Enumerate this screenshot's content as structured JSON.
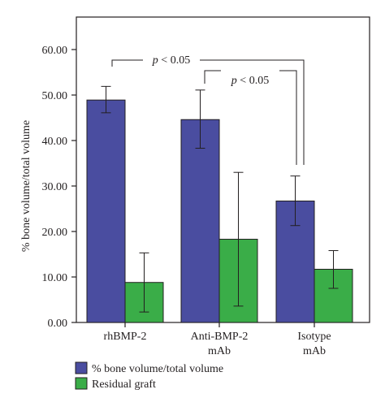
{
  "chart_data": {
    "type": "bar",
    "ylabel": "% bone volume/total volume",
    "ylim": [
      0,
      60
    ],
    "yticks": [
      "0.00",
      "10.00",
      "20.00",
      "30.00",
      "40.00",
      "50.00",
      "60.00"
    ],
    "categories": [
      {
        "line1": "rhBMP-2",
        "line2": ""
      },
      {
        "line1": "Anti-BMP-2",
        "line2": "mAb"
      },
      {
        "line1": "Isotype",
        "line2": "mAb"
      }
    ],
    "series": [
      {
        "name": "% bone volume/total volume",
        "color": "#4a4da0",
        "values": [
          48.9,
          44.6,
          26.7
        ],
        "err_low": [
          46.1,
          38.3,
          21.3
        ],
        "err_high": [
          51.9,
          51.1,
          32.2
        ]
      },
      {
        "name": "Residual graft",
        "color": "#3aad48",
        "values": [
          8.8,
          18.3,
          11.7
        ],
        "err_low": [
          2.3,
          3.6,
          7.5
        ],
        "err_high": [
          15.3,
          33.0,
          15.8
        ]
      }
    ],
    "annotations": [
      {
        "italic": "p",
        "text": " < 0.05",
        "from_category": 0,
        "to_category": 2
      },
      {
        "italic": "p",
        "text": " < 0.05",
        "from_category": 1,
        "to_category": 2
      }
    ]
  }
}
